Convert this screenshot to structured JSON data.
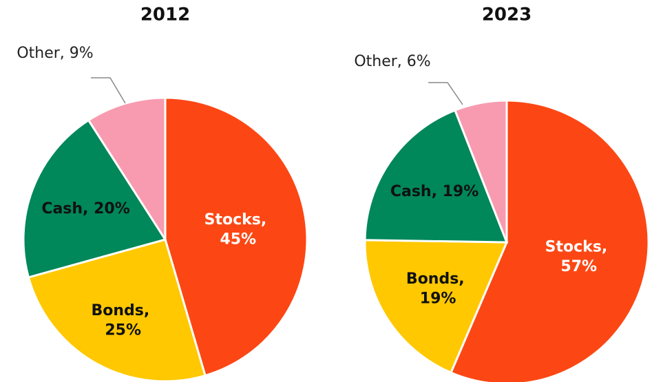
{
  "chart_data": [
    {
      "type": "pie",
      "title": "2012",
      "categories": [
        "Stocks",
        "Bonds",
        "Cash",
        "Other"
      ],
      "values": [
        45,
        25,
        20,
        9
      ],
      "value_labels": [
        "Stocks, 45%",
        "Bonds, 25%",
        "Cash, 20%",
        "Other, 9%"
      ],
      "colors": [
        "#fc4714",
        "#ffc800",
        "#00875a",
        "#f89bb0"
      ]
    },
    {
      "type": "pie",
      "title": "2023",
      "categories": [
        "Stocks",
        "Bonds",
        "Cash",
        "Other"
      ],
      "values": [
        57,
        19,
        19,
        6
      ],
      "value_labels": [
        "Stocks, 57%",
        "Bonds, 19%",
        "Cash, 19%",
        "Other, 6%"
      ],
      "colors": [
        "#fc4714",
        "#ffc800",
        "#00875a",
        "#f89bb0"
      ]
    }
  ]
}
